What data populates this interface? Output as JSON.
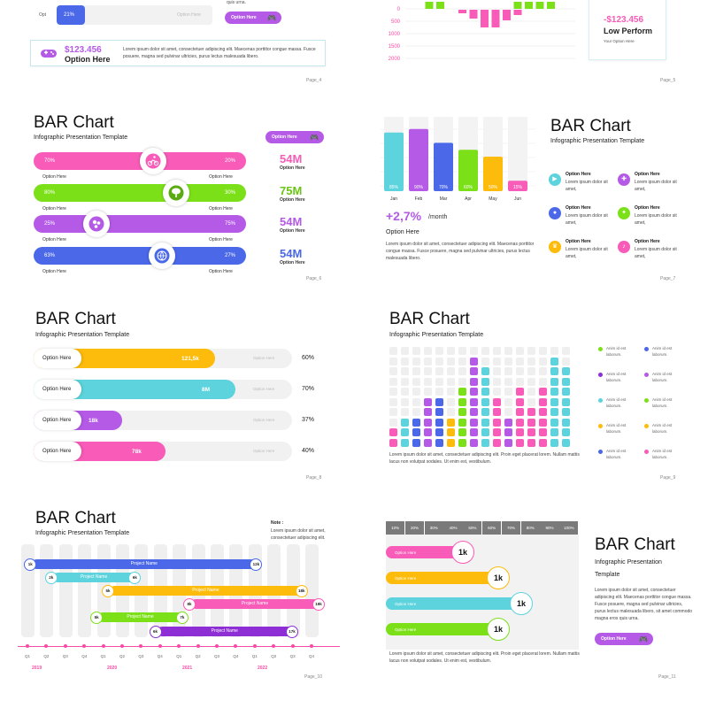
{
  "colors": {
    "pink": "#F85BB8",
    "green": "#7CE019",
    "purple": "#B45AE6",
    "blue": "#4A68E8",
    "cyan": "#5DD3DD",
    "orange": "#FDBB0B",
    "gray": "#EFEFEF",
    "magenta": "#F74BA4",
    "violet": "#8E2FD6"
  },
  "s4": {
    "opt_label": "Opt",
    "pct": "21%",
    "option_here_gray": "Option Here",
    "button_label": "Option Here",
    "lorem_top": "quis urna.",
    "money": "$123.456",
    "option_here_bold": "Option Here",
    "lorem": "Lorem ipsum dolor sit amet, consectetuer adipiscing elit. Maecenas porttitor congue massa. Fusce posuere, magna sed pulvinar ultricies, purus lectus malesuada libero.",
    "page": "Page_4"
  },
  "s5": {
    "y_ticks": [
      "0",
      "500",
      "1000",
      "1500",
      "2000"
    ],
    "money": "-$123.456",
    "label": "Low Perform",
    "option": "Your Option Here",
    "page": "Page_5"
  },
  "s6": {
    "title": "BAR Chart",
    "subtitle": "Infographic Presentation Template",
    "button_label": "Option Here",
    "bars": [
      {
        "left_pct": "70%",
        "right_pct": "20%",
        "icon": "cyclist-icon",
        "value": "54M",
        "value_label": "Option Here"
      },
      {
        "left_pct": "80%",
        "right_pct": "30%",
        "icon": "tree-icon",
        "value": "75M",
        "value_label": "Option Here"
      },
      {
        "left_pct": "25%",
        "right_pct": "75%",
        "icon": "molecule-icon",
        "value": "54M",
        "value_label": "Option Here"
      },
      {
        "left_pct": "63%",
        "right_pct": "27%",
        "icon": "globe-icon",
        "value": "54M",
        "value_label": "Option Here"
      }
    ],
    "under_label": "Option Here",
    "page": "Page_6"
  },
  "s7": {
    "title": "BAR Chart",
    "subtitle": "Infographic Presentation Template",
    "months": [
      "Jan",
      "Feb",
      "Mar",
      "Apr",
      "May",
      "Jun"
    ],
    "pcts": [
      "85%",
      "90%",
      "70%",
      "60%",
      "50%",
      "15%"
    ],
    "growth": "+2,7%",
    "per": "/month",
    "option": "Option Here",
    "lorem": "Lorem ipsum dolor sit amet, consectetuer adipiscing elit. Maecenas porttitor congue massa. Fusce posuere, magna sed pulvinar ultricies, purus lectus malesuada libero.",
    "items": [
      {
        "title": "Option Here",
        "text": "Lorem ipsum dolor sit amet,",
        "icon": "video-icon"
      },
      {
        "title": "Option Here",
        "text": "Lorem ipsum dolor sit amet,",
        "icon": "gamepad-icon"
      },
      {
        "title": "Option Here",
        "text": "Lorem ipsum dolor sit amet,",
        "icon": "users-icon"
      },
      {
        "title": "Option Here",
        "text": "Lorem ipsum dolor sit amet,",
        "icon": "pills-icon"
      },
      {
        "title": "Option Here",
        "text": "Lorem ipsum dolor sit amet,",
        "icon": "trophy-icon"
      },
      {
        "title": "Option Here",
        "text": "Lorem ipsum dolor sit amet,",
        "icon": "music-icon"
      }
    ],
    "page": "Page_7"
  },
  "s8": {
    "title": "BAR Chart",
    "subtitle": "Infographic Presentation Template",
    "rows": [
      {
        "label": "Option Here",
        "value": "121,5k",
        "gray": "Option Here",
        "pct": "60%"
      },
      {
        "label": "Option Here",
        "value": "8M",
        "gray": "Option Here",
        "pct": "70%"
      },
      {
        "label": "Option Here",
        "value": "18k",
        "gray": "Option Here",
        "pct": "37%"
      },
      {
        "label": "Option Here",
        "value": "78k",
        "gray": "Option Here",
        "pct": "40%"
      }
    ],
    "page": "Page_8"
  },
  "s9": {
    "title": "BAR Chart",
    "subtitle": "Infographic Presentation Template",
    "legend_text": "Anim id est laborum.",
    "lorem": "Lorem ipsum dolor sit amet, consectetuer adipiscing elit. Proin eget placerat lorem. Nullam mattis lacus non volutpat sodales. Ut enim est, vestibulum.",
    "page": "Page_9"
  },
  "s10": {
    "title": "BAR Chart",
    "subtitle": "Infographic Presentation Template",
    "note_title": "Note :",
    "note": "Lorem ipsum dolor sit amet, consectetuer adipiscing elit.",
    "tasks": [
      {
        "name": "Project Name",
        "start": "1k",
        "end": "12k"
      },
      {
        "name": "Project Name",
        "start": "2k",
        "end": "6k"
      },
      {
        "name": "Project Name",
        "start": "5k",
        "end": "18k"
      },
      {
        "name": "Project Name",
        "start": "8k",
        "end": "19k"
      },
      {
        "name": "Project Name",
        "start": "5k",
        "end": "7k"
      },
      {
        "name": "Project Name",
        "start": "6k",
        "end": "17k"
      }
    ],
    "quarters": [
      "Q1",
      "Q2",
      "Q3",
      "Q4",
      "Q1",
      "Q2",
      "Q3",
      "Q4",
      "Q1",
      "Q2",
      "Q3",
      "Q4",
      "Q1",
      "Q2",
      "Q3",
      "Q4"
    ],
    "years": [
      "2019",
      "2020",
      "2021",
      "2022"
    ],
    "page": "Page_10"
  },
  "s11": {
    "title": "BAR Chart",
    "subtitle": "Infographic Presentation Template",
    "scale": [
      "10%",
      "20%",
      "30%",
      "40%",
      "50%",
      "60%",
      "70%",
      "80%",
      "90%",
      "100%"
    ],
    "rows": [
      {
        "label": "Option Here",
        "value": "1k"
      },
      {
        "label": "Option Here",
        "value": "1k"
      },
      {
        "label": "Option Here",
        "value": "1k"
      },
      {
        "label": "Option Here",
        "value": "1k"
      }
    ],
    "lorem_right": "Lorem ipsum dolor sit amet, consectetuer adipiscing elit. Maecenas porttitor congue massa. Fusce posuere, magna sed pulvinar ultricies, purus lectus malesuada libero, sit amet commodo magna eros quis urna.",
    "button_label": "Option Here",
    "lorem_bottom": "Lorem ipsum dolor sit amet, consectetuer adipiscing elit. Proin eget placerat lorem. Nullam mattis lacus non volutpat sodales. Ut enim est, vestibulum.",
    "page": "Page_11"
  }
}
